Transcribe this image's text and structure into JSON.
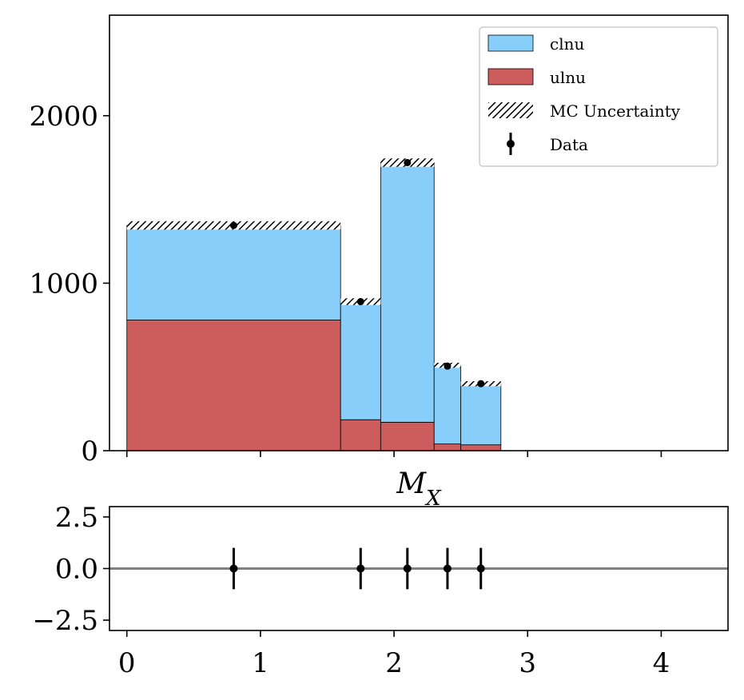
{
  "chart_data": [
    {
      "type": "bar",
      "subtype": "stacked-step-histogram",
      "bin_edges": [
        0.0,
        1.6,
        1.9,
        2.3,
        2.5,
        2.8
      ],
      "series": [
        {
          "name": "ulnu",
          "values": [
            780,
            185,
            170,
            40,
            35
          ],
          "color": "#cd5c5c"
        },
        {
          "name": "clnu",
          "values": [
            565,
            705,
            1550,
            470,
            365
          ],
          "color": "#87cefa"
        }
      ],
      "mc_uncertainty": [
        25,
        20,
        25,
        15,
        15
      ],
      "data_points": {
        "name": "Data",
        "x": [
          0.8,
          1.75,
          2.1,
          2.4,
          2.65
        ],
        "y": [
          1345,
          890,
          1720,
          505,
          400
        ]
      },
      "legend": [
        {
          "label": "clnu",
          "kind": "patch",
          "color": "#87cefa"
        },
        {
          "label": "ulnu",
          "kind": "patch",
          "color": "#cd5c5c"
        },
        {
          "label": "MC Uncertainty",
          "kind": "hatch",
          "color": "#000000"
        },
        {
          "label": "Data",
          "kind": "errorbar",
          "color": "#000000"
        }
      ],
      "legend_position": "top-right",
      "xlim": [
        -0.13,
        4.5
      ],
      "ylim": [
        0,
        2600
      ],
      "yticks": [
        0,
        1000,
        2000
      ],
      "ytick_labels": [
        "0",
        "1000",
        "2000"
      ],
      "xlabel": "M_X",
      "grid": false
    },
    {
      "type": "scatter",
      "subtype": "pull-plot",
      "x": [
        0.8,
        1.75,
        2.1,
        2.4,
        2.65
      ],
      "y": [
        0.0,
        0.0,
        0.0,
        0.0,
        0.0
      ],
      "yerr": [
        1.0,
        1.0,
        1.0,
        1.0,
        1.0
      ],
      "reference_line": 0.0,
      "reference_line_color": "#808080",
      "xlim": [
        -0.13,
        4.5
      ],
      "ylim": [
        -3,
        3
      ],
      "xticks": [
        0,
        1,
        2,
        3,
        4
      ],
      "xtick_labels": [
        "0",
        "1",
        "2",
        "3",
        "4"
      ],
      "yticks": [
        2.5,
        0.0,
        -2.5
      ],
      "ytick_labels": [
        "2.5",
        "0.0",
        "−2.5"
      ],
      "grid": false
    }
  ]
}
